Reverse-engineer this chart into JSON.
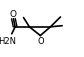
{
  "bg_color": "#ffffff",
  "line_color": "#000000",
  "line_width": 1.2,
  "font_size_atom": 6.0,
  "c2x": 0.35,
  "c2y": 0.52,
  "c3x": 0.6,
  "c3y": 0.52,
  "ox": 0.48,
  "oy": 0.37,
  "cox": 0.18,
  "coy": 0.52,
  "carbonyl_O_label": "O",
  "nh2_label": "H2N",
  "o_ring_label": "O"
}
